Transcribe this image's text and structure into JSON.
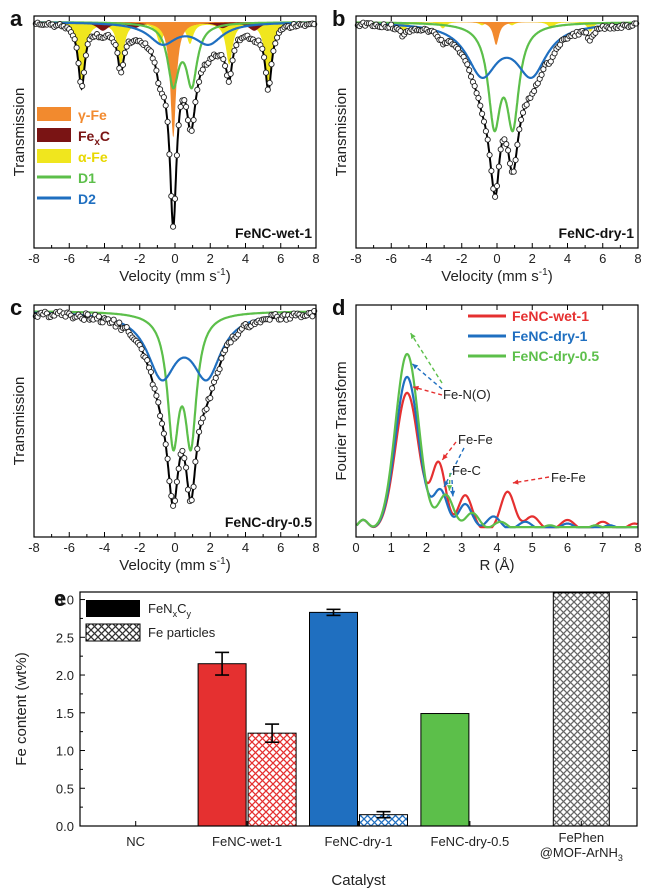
{
  "colors": {
    "gamma_fe": "#f28a2e",
    "fexc": "#7a1414",
    "alpha_fe": "#f0e61e",
    "d1": "#5cbf4a",
    "d2": "#1f6fc0",
    "fit": "#000000",
    "wet": "#e53030",
    "dry1": "#1f6fc0",
    "dry05": "#5cbf4a",
    "hatch": "#666666"
  },
  "mossbauer": {
    "x_ticks": [
      "-8",
      "-6",
      "-4",
      "-2",
      "0",
      "2",
      "4",
      "6",
      "8"
    ],
    "xlabel": "Velocity (mm s",
    "xlabel_sup": "-1",
    "xlabel_close": ")",
    "ylabel": "Transmission",
    "legend": [
      {
        "label": "γ-Fe",
        "kind": "swatch",
        "color_key": "gamma_fe",
        "text_color": "#f28a2e"
      },
      {
        "label": "Fe",
        "sub": "x",
        "tail": "C",
        "kind": "swatch",
        "color_key": "fexc",
        "text_color": "#7a1414"
      },
      {
        "label": "α-Fe",
        "kind": "swatch",
        "color_key": "alpha_fe",
        "text_color": "#e8d800"
      },
      {
        "label": "D1",
        "kind": "line",
        "color_key": "d1",
        "text_color": "#5cbf4a"
      },
      {
        "label": "D2",
        "kind": "line",
        "color_key": "d2",
        "text_color": "#1f6fc0"
      }
    ],
    "panels": [
      {
        "letter": "a",
        "sample": "FeNC-wet-1"
      },
      {
        "letter": "b",
        "sample": "FeNC-dry-1"
      },
      {
        "letter": "c",
        "sample": "FeNC-dry-0.5"
      }
    ]
  },
  "exafs": {
    "letter": "d",
    "x_ticks": [
      "0",
      "1",
      "2",
      "3",
      "4",
      "5",
      "6",
      "7",
      "8"
    ],
    "xlabel": "R (Å)",
    "ylabel": "Fourier Transform",
    "legend": [
      {
        "label": "FeNC-wet-1",
        "color_key": "wet"
      },
      {
        "label": "FeNC-dry-1",
        "color_key": "dry1"
      },
      {
        "label": "FeNC-dry-0.5",
        "color_key": "dry05"
      }
    ],
    "annotations": {
      "fe_n_o": "Fe-N(O)",
      "fe_fe_1": "Fe-Fe",
      "fe_c": "Fe-C",
      "fe_fe_2": "Fe-Fe"
    }
  },
  "chart_data": [
    {
      "panel": "e",
      "type": "bar",
      "categories": [
        "NC",
        "FeNC-wet-1",
        "FeNC-dry-1",
        "FeNC-dry-0.5",
        "FePhen @MOF-ArNH3"
      ],
      "category_lines": [
        [
          "NC"
        ],
        [
          "FeNC-wet-1"
        ],
        [
          "FeNC-dry-1"
        ],
        [
          "FeNC-dry-0.5"
        ],
        [
          "FePhen",
          "@MOF-ArNH",
          "3"
        ]
      ],
      "series": [
        {
          "name": "FeNxCy",
          "values": [
            0,
            2.15,
            2.83,
            1.49,
            0
          ],
          "errors": [
            0,
            0.15,
            0.04,
            0,
            0
          ]
        },
        {
          "name": "Fe particles",
          "values": [
            0,
            1.23,
            0.15,
            0,
            3.09
          ],
          "errors": [
            0,
            0.12,
            0.04,
            0,
            0
          ]
        }
      ],
      "legend_labels": [
        {
          "main": "FeN",
          "sub1": "x",
          "mid": "C",
          "sub2": "y"
        },
        {
          "main": "Fe particles"
        }
      ],
      "bar_colors": [
        "#ffffff",
        "#e53030",
        "#1f6fc0",
        "#5cbf4a",
        "#9a9a9a"
      ],
      "xlabel": "Catalyst",
      "ylabel": "Fe content (wt%)",
      "ylim": [
        0,
        3.1
      ],
      "y_ticks": [
        "0.0",
        "0.5",
        "1.0",
        "1.5",
        "2.0",
        "2.5",
        "3.0"
      ],
      "legend_position": "top-left"
    }
  ]
}
